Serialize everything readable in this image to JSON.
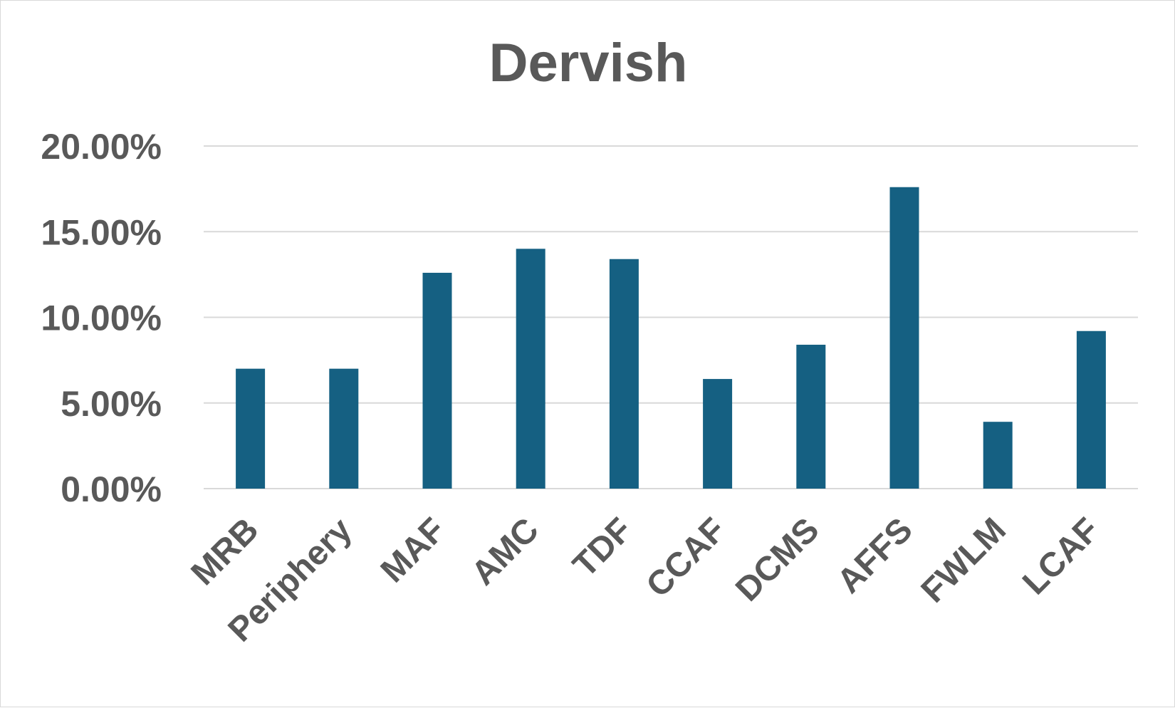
{
  "chart_data": {
    "type": "bar",
    "title": "Dervish",
    "xlabel": "",
    "ylabel": "",
    "categories": [
      "MRB",
      "Periphery",
      "MAF",
      "AMC",
      "TDF",
      "CCAF",
      "DCMS",
      "AFFS",
      "FWLM",
      "LCAF"
    ],
    "series": [
      {
        "values": [
          7.0,
          7.0,
          12.6,
          14.0,
          13.4,
          6.4,
          8.4,
          17.6,
          3.9,
          9.2
        ]
      }
    ],
    "y_ticks": [
      "0.00%",
      "5.00%",
      "10.00%",
      "15.00%",
      "20.00%"
    ],
    "ylim": [
      0,
      20
    ],
    "grid": true,
    "legend": "none",
    "colors": {
      "bar": "#156082",
      "text": "#595959",
      "grid": "#d9d9d9"
    }
  }
}
